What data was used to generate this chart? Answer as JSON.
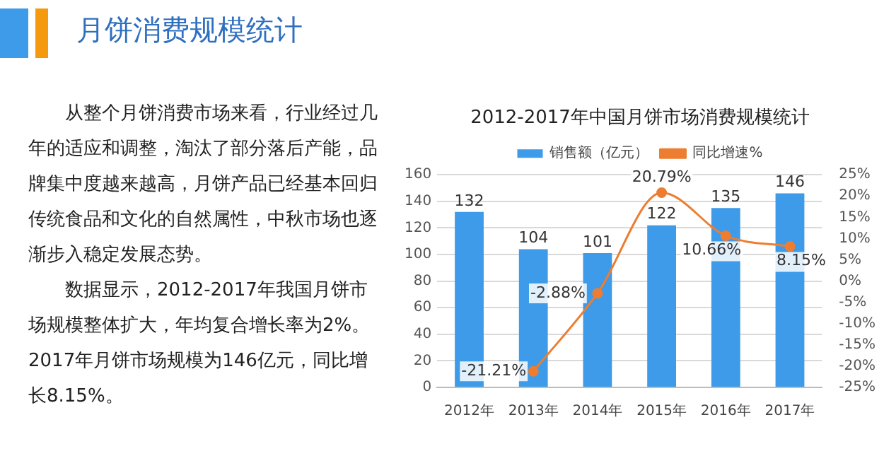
{
  "chart_data": {
    "type": "bar",
    "title": "2012-2017年中国月饼市场消费规模统计",
    "annotations": [
      "月饼消费规模统计",
      "从整个月饼消费市场来看，行业经过几年的适应和调整，淘汰了部分落后产能，品牌集中度越来越高，月饼产品已经基本回归传统食品和文化的自然属性，中秋市场也逐渐步入稳定发展态势。",
      "数据显示，2012-2017年我国月饼市场规模整体扩大，年均复合增长率为2%。2017年月饼市场规模为146亿元，同比增长8.15%。"
    ],
    "categories": [
      "2012年",
      "2013年",
      "2014年",
      "2015年",
      "2016年",
      "2017年"
    ],
    "series": [
      {
        "name": "销售额（亿元）",
        "color": "#3d9be9",
        "values": [
          132,
          104,
          101,
          122,
          135,
          146
        ],
        "value_labels": [
          "132",
          "104",
          "101",
          "122",
          "135",
          "146"
        ]
      },
      {
        "name": "同比增速%",
        "type": "line",
        "axis": "y2",
        "color": "#ed7d31",
        "marker": "circle",
        "values": [
          null,
          -21.21,
          -2.88,
          20.79,
          10.66,
          8.15
        ],
        "value_labels": [
          null,
          "-21.21%",
          "-2.88%",
          "20.79%",
          "10.66%",
          "8.15%"
        ]
      }
    ],
    "ylim": [
      0,
      160
    ],
    "yticks": [
      0,
      20,
      40,
      60,
      80,
      100,
      120,
      140,
      160
    ],
    "y2lim": [
      -25,
      25
    ],
    "y2ticks": [
      {
        "value": -25,
        "label": "-25%"
      },
      {
        "value": -20,
        "label": "-20%"
      },
      {
        "value": -15,
        "label": "-15%"
      },
      {
        "value": -10,
        "label": "-10%"
      },
      {
        "value": -5,
        "label": "-5%"
      },
      {
        "value": 0,
        "label": "0%"
      },
      {
        "value": 5,
        "label": "5%"
      },
      {
        "value": 10,
        "label": "10%"
      },
      {
        "value": 15,
        "label": "15%"
      },
      {
        "value": 20,
        "label": "20%"
      },
      {
        "value": 25,
        "label": "25%"
      }
    ],
    "grid": "y",
    "legend": "top"
  }
}
